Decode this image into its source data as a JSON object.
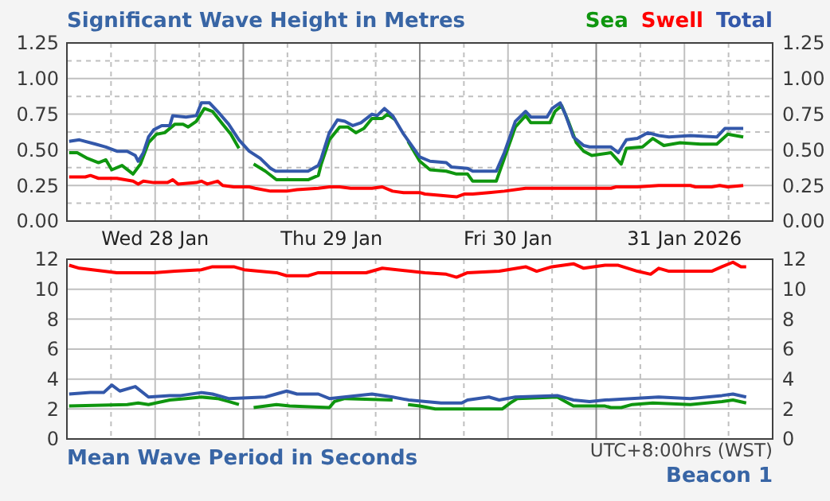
{
  "chart_data": [
    {
      "type": "line",
      "title": "Significant Wave Height in Metres",
      "legend": "top right",
      "grid": true,
      "xlim": [
        "2026-01-28T00:00",
        "2026-02-01T00:00"
      ],
      "xticks": [
        {
          "value": "2026-01-28T00:00",
          "label": null
        },
        {
          "value": "2026-01-28T06:00",
          "label": null
        },
        {
          "value": "2026-01-28T12:00",
          "label": "Wed 28 Jan"
        },
        {
          "value": "2026-01-28T18:00",
          "label": null
        },
        {
          "value": "2026-01-29T00:00",
          "label": null
        },
        {
          "value": "2026-01-29T06:00",
          "label": null
        },
        {
          "value": "2026-01-29T12:00",
          "label": "Thu 29 Jan"
        },
        {
          "value": "2026-01-29T18:00",
          "label": null
        },
        {
          "value": "2026-01-30T00:00",
          "label": null
        },
        {
          "value": "2026-01-30T06:00",
          "label": null
        },
        {
          "value": "2026-01-30T12:00",
          "label": "Fri 30 Jan"
        },
        {
          "value": "2026-01-30T18:00",
          "label": null
        },
        {
          "value": "2026-01-31T00:00",
          "label": null
        },
        {
          "value": "2026-01-31T06:00",
          "label": null
        },
        {
          "value": "2026-01-31T12:00",
          "label": "31 Jan 2026"
        },
        {
          "value": "2026-01-31T18:00",
          "label": null
        },
        {
          "value": "2026-02-01T00:00",
          "label": null
        }
      ],
      "ylim": [
        0,
        1.25
      ],
      "yticks": [
        {
          "value": 0,
          "label": "0.00"
        },
        {
          "value": 0.125,
          "label": null
        },
        {
          "value": 0.25,
          "label": "0.25"
        },
        {
          "value": 0.375,
          "label": null
        },
        {
          "value": 0.5,
          "label": "0.50"
        },
        {
          "value": 0.625,
          "label": null
        },
        {
          "value": 0.75,
          "label": "0.75"
        },
        {
          "value": 0.875,
          "label": null
        },
        {
          "value": 1,
          "label": "1.00"
        },
        {
          "value": 1.125,
          "label": null
        },
        {
          "value": 1.25,
          "label": "1.25"
        }
      ],
      "y2lim": [
        0,
        1.25
      ],
      "y2ticks": [
        {
          "value": 0,
          "label": "0.00"
        },
        {
          "value": 0.25,
          "label": "0.25"
        },
        {
          "value": 0.5,
          "label": "0.50"
        },
        {
          "value": 0.75,
          "label": "0.75"
        },
        {
          "value": 1,
          "label": "1.00"
        },
        {
          "value": 1.25,
          "label": "1.25"
        }
      ],
      "series": [
        {
          "name": "Sea",
          "color": "#0f960f",
          "x": [
            "2026-01-28T00:18",
            "2026-01-28T01:24",
            "2026-01-28T02:48",
            "2026-01-28T04:18",
            "2026-01-28T05:18",
            "2026-01-28T06:06",
            "2026-01-28T07:30",
            "2026-01-28T09:00",
            "2026-01-28T10:00",
            "2026-01-28T11:06",
            "2026-01-28T12:12",
            "2026-01-28T13:18",
            "2026-01-28T14:42",
            "2026-01-28T15:48",
            "2026-01-28T16:30",
            "2026-01-28T17:36",
            "2026-01-28T18:42",
            "2026-01-28T19:48",
            "2026-01-28T21:12",
            "2026-01-28T22:18",
            "2026-01-28T23:24",
            "2026-01-29T00:30",
            "2026-01-29T01:24",
            "2026-01-29T03:00",
            "2026-01-29T04:30",
            "2026-01-29T08:48",
            "2026-01-29T10:12",
            "2026-01-29T10:36",
            "2026-01-29T11:42",
            "2026-01-29T13:06",
            "2026-01-29T14:12",
            "2026-01-29T15:18",
            "2026-01-29T16:24",
            "2026-01-29T17:30",
            "2026-01-29T18:54",
            "2026-01-29T19:36",
            "2026-01-29T20:42",
            "2026-01-29T21:30",
            "2026-01-29T22:24",
            "2026-01-30T00:00",
            "2026-01-30T01:24",
            "2026-01-30T03:36",
            "2026-01-30T05:00",
            "2026-01-30T06:30",
            "2026-01-30T07:12",
            "2026-01-30T10:24",
            "2026-01-30T11:30",
            "2026-01-30T13:00",
            "2026-01-30T14:24",
            "2026-01-30T15:06",
            "2026-01-30T17:42",
            "2026-01-30T18:24",
            "2026-01-30T19:18",
            "2026-01-30T20:12",
            "2026-01-30T21:18",
            "2026-01-30T22:18",
            "2026-01-30T23:24",
            "2026-01-31T02:00",
            "2026-01-31T03:24",
            "2026-01-31T04:06",
            "2026-01-31T06:18",
            "2026-01-31T07:42",
            "2026-01-31T09:12",
            "2026-01-31T11:24",
            "2026-01-31T14:12",
            "2026-01-31T16:24",
            "2026-01-31T17:54",
            "2026-01-31T20:00"
          ],
          "values": [
            0.48,
            0.48,
            0.44,
            0.41,
            0.43,
            0.36,
            0.39,
            0.33,
            0.4,
            0.55,
            0.61,
            0.62,
            0.68,
            0.68,
            0.66,
            0.7,
            0.79,
            0.77,
            0.68,
            0.61,
            0.51,
            null,
            0.4,
            0.35,
            0.29,
            0.29,
            0.32,
            0.4,
            0.57,
            0.66,
            0.66,
            0.62,
            0.65,
            0.72,
            0.72,
            0.75,
            0.71,
            null,
            0.56,
            0.42,
            0.36,
            0.35,
            0.33,
            0.33,
            0.28,
            0.28,
            0.44,
            0.66,
            0.74,
            0.69,
            0.69,
            0.77,
            0.81,
            0.7,
            0.55,
            0.49,
            0.46,
            0.48,
            0.4,
            0.51,
            0.52,
            0.58,
            0.53,
            0.55,
            0.54,
            0.54,
            0.61,
            0.59
          ]
        },
        {
          "name": "Swell",
          "color": "#ff0000",
          "x": [
            "2026-01-28T00:18",
            "2026-01-28T02:30",
            "2026-01-28T03:12",
            "2026-01-28T04:18",
            "2026-01-28T06:48",
            "2026-01-28T09:00",
            "2026-01-28T09:42",
            "2026-01-28T10:24",
            "2026-01-28T11:48",
            "2026-01-28T13:42",
            "2026-01-28T14:24",
            "2026-01-28T15:06",
            "2026-01-28T17:36",
            "2026-01-28T18:18",
            "2026-01-28T19:06",
            "2026-01-28T20:30",
            "2026-01-28T21:12",
            "2026-01-28T22:42",
            "2026-01-29T00:48",
            "2026-01-29T01:36",
            "2026-01-29T03:42",
            "2026-01-29T05:54",
            "2026-01-29T07:18",
            "2026-01-29T10:12",
            "2026-01-29T11:42",
            "2026-01-29T13:06",
            "2026-01-29T14:36",
            "2026-01-29T17:30",
            "2026-01-29T18:54",
            "2026-01-29T20:18",
            "2026-01-29T21:48",
            "2026-01-30T00:00",
            "2026-01-30T00:42",
            "2026-01-30T02:54",
            "2026-01-30T05:00",
            "2026-01-30T06:06",
            "2026-01-30T07:12",
            "2026-01-30T09:24",
            "2026-01-30T11:30",
            "2026-01-30T14:24",
            "2026-01-30T15:06",
            "2026-01-30T18:00",
            "2026-01-30T19:30",
            "2026-01-31T02:00",
            "2026-01-31T02:42",
            "2026-01-31T05:36",
            "2026-01-31T08:30",
            "2026-01-31T12:48",
            "2026-01-31T13:30",
            "2026-01-31T15:42",
            "2026-01-31T16:48",
            "2026-01-31T17:54",
            "2026-01-31T20:00"
          ],
          "values": [
            0.31,
            0.31,
            0.32,
            0.3,
            0.3,
            0.28,
            0.26,
            0.28,
            0.27,
            0.27,
            0.29,
            0.26,
            0.27,
            0.28,
            0.26,
            0.28,
            0.25,
            0.24,
            0.24,
            0.23,
            0.21,
            0.21,
            0.22,
            0.23,
            0.24,
            0.24,
            0.23,
            0.23,
            0.24,
            0.21,
            0.2,
            0.2,
            0.19,
            0.18,
            0.17,
            0.19,
            0.19,
            0.2,
            0.21,
            0.23,
            0.23,
            0.23,
            0.23,
            0.23,
            0.24,
            0.24,
            0.25,
            0.25,
            0.24,
            0.24,
            0.25,
            0.24,
            0.25
          ]
        },
        {
          "name": "Total",
          "color": "#3358aa",
          "x": [
            "2026-01-28T00:18",
            "2026-01-28T01:42",
            "2026-01-28T03:54",
            "2026-01-28T05:18",
            "2026-01-28T06:48",
            "2026-01-28T08:12",
            "2026-01-28T09:18",
            "2026-01-28T09:42",
            "2026-01-28T10:24",
            "2026-01-28T11:06",
            "2026-01-28T11:48",
            "2026-01-28T12:54",
            "2026-01-28T14:00",
            "2026-01-28T14:24",
            "2026-01-28T16:12",
            "2026-01-28T17:36",
            "2026-01-28T18:18",
            "2026-01-28T19:24",
            "2026-01-28T20:30",
            "2026-01-28T22:00",
            "2026-01-28T23:24",
            "2026-01-29T00:48",
            "2026-01-29T02:18",
            "2026-01-29T03:42",
            "2026-01-29T04:24",
            "2026-01-29T08:48",
            "2026-01-29T10:12",
            "2026-01-29T10:36",
            "2026-01-29T11:42",
            "2026-01-29T12:48",
            "2026-01-29T13:48",
            "2026-01-29T14:54",
            "2026-01-29T16:00",
            "2026-01-29T17:30",
            "2026-01-29T18:12",
            "2026-01-29T19:12",
            "2026-01-29T20:18",
            "2026-01-29T21:48",
            "2026-01-30T00:00",
            "2026-01-30T01:24",
            "2026-01-30T03:36",
            "2026-01-30T04:18",
            "2026-01-30T06:30",
            "2026-01-30T07:12",
            "2026-01-30T10:24",
            "2026-01-30T11:30",
            "2026-01-30T13:00",
            "2026-01-30T14:24",
            "2026-01-30T15:06",
            "2026-01-30T17:18",
            "2026-01-30T18:00",
            "2026-01-30T19:06",
            "2026-01-30T19:48",
            "2026-01-30T20:54",
            "2026-01-30T22:18",
            "2026-01-30T23:06",
            "2026-01-31T02:00",
            "2026-01-31T03:00",
            "2026-01-31T04:06",
            "2026-01-31T05:36",
            "2026-01-31T07:00",
            "2026-01-31T08:30",
            "2026-01-31T09:54",
            "2026-01-31T12:48",
            "2026-01-31T16:24",
            "2026-01-31T17:30",
            "2026-01-31T20:00"
          ],
          "values": [
            0.56,
            0.57,
            0.54,
            0.52,
            0.49,
            0.49,
            0.46,
            0.42,
            0.48,
            0.59,
            0.64,
            0.67,
            0.67,
            0.74,
            0.73,
            0.74,
            0.83,
            0.83,
            0.77,
            0.68,
            0.57,
            0.49,
            0.44,
            0.37,
            0.35,
            0.35,
            0.39,
            0.44,
            0.62,
            0.71,
            0.7,
            0.67,
            0.69,
            0.75,
            0.74,
            0.79,
            0.74,
            0.61,
            0.45,
            0.42,
            0.41,
            0.38,
            0.37,
            0.35,
            0.35,
            0.48,
            0.7,
            0.77,
            0.73,
            0.73,
            0.79,
            0.83,
            0.75,
            0.59,
            0.53,
            0.52,
            0.52,
            0.48,
            0.57,
            0.58,
            0.62,
            0.6,
            0.59,
            0.6,
            0.59,
            0.65,
            0.65
          ]
        }
      ]
    },
    {
      "type": "line",
      "title": "Mean Wave Period in Seconds",
      "grid": true,
      "tick_labels": "y",
      "annotations": [
        "UTC+8:00hrs (WST)",
        "Beacon 1"
      ],
      "xlim": [
        "2026-01-28T00:00",
        "2026-02-01T00:00"
      ],
      "xticks": [
        {
          "value": "2026-01-28T00:00",
          "label": null
        },
        {
          "value": "2026-01-28T06:00",
          "label": null
        },
        {
          "value": "2026-01-28T12:00",
          "label": null
        },
        {
          "value": "2026-01-28T18:00",
          "label": null
        },
        {
          "value": "2026-01-29T00:00",
          "label": null
        },
        {
          "value": "2026-01-29T06:00",
          "label": null
        },
        {
          "value": "2026-01-29T12:00",
          "label": null
        },
        {
          "value": "2026-01-29T18:00",
          "label": null
        },
        {
          "value": "2026-01-30T00:00",
          "label": null
        },
        {
          "value": "2026-01-30T06:00",
          "label": null
        },
        {
          "value": "2026-01-30T12:00",
          "label": null
        },
        {
          "value": "2026-01-30T18:00",
          "label": null
        },
        {
          "value": "2026-01-31T00:00",
          "label": null
        },
        {
          "value": "2026-01-31T06:00",
          "label": null
        },
        {
          "value": "2026-01-31T12:00",
          "label": null
        },
        {
          "value": "2026-01-31T18:00",
          "label": null
        },
        {
          "value": "2026-02-01T00:00",
          "label": null
        }
      ],
      "ylim": [
        0,
        12
      ],
      "yticks": [
        0,
        2,
        4,
        6,
        8,
        10,
        12
      ],
      "y2lim": [
        0,
        12
      ],
      "y2ticks": [
        0,
        2,
        4,
        6,
        8,
        10,
        12
      ],
      "series": [
        {
          "color": "#0f960f",
          "x": [
            "2026-01-28T00:18",
            "2026-01-28T08:12",
            "2026-01-28T09:42",
            "2026-01-28T11:06",
            "2026-01-28T14:00",
            "2026-01-28T16:12",
            "2026-01-28T18:18",
            "2026-01-28T20:30",
            "2026-01-28T22:00",
            "2026-01-28T23:24",
            "2026-01-29T00:30",
            "2026-01-29T01:24",
            "2026-01-29T04:30",
            "2026-01-29T06:18",
            "2026-01-29T11:42",
            "2026-01-29T12:24",
            "2026-01-29T13:48",
            "2026-01-29T20:18",
            "2026-01-29T21:30",
            "2026-01-29T22:24",
            "2026-01-30T00:00",
            "2026-01-30T02:06",
            "2026-01-30T11:12",
            "2026-01-30T12:18",
            "2026-01-30T13:18",
            "2026-01-30T18:42",
            "2026-01-30T20:54",
            "2026-01-31T01:12",
            "2026-01-31T02:00",
            "2026-01-31T03:24",
            "2026-01-31T04:54",
            "2026-01-31T07:42",
            "2026-01-31T12:48",
            "2026-01-31T17:06",
            "2026-01-31T18:36",
            "2026-01-31T20:24"
          ],
          "values": [
            2.2,
            2.3,
            2.4,
            2.3,
            2.6,
            2.7,
            2.8,
            2.7,
            2.5,
            2.3,
            null,
            2.1,
            2.3,
            2.2,
            2.1,
            2.5,
            2.7,
            2.6,
            null,
            2.3,
            2.2,
            2.0,
            2.0,
            2.4,
            2.7,
            2.8,
            2.2,
            2.2,
            2.1,
            2.1,
            2.3,
            2.4,
            2.3,
            2.5,
            2.6,
            2.4
          ]
        },
        {
          "color": "#ff0000",
          "x": [
            "2026-01-28T00:18",
            "2026-01-28T01:42",
            "2026-01-28T06:48",
            "2026-01-28T11:48",
            "2026-01-28T14:42",
            "2026-01-28T18:18",
            "2026-01-28T19:48",
            "2026-01-28T22:42",
            "2026-01-29T00:06",
            "2026-01-29T04:30",
            "2026-01-29T05:54",
            "2026-01-29T08:48",
            "2026-01-29T10:12",
            "2026-01-29T14:36",
            "2026-01-29T16:42",
            "2026-01-29T18:54",
            "2026-01-30T00:42",
            "2026-01-30T03:36",
            "2026-01-30T05:00",
            "2026-01-30T06:30",
            "2026-01-30T10:48",
            "2026-01-30T14:24",
            "2026-01-30T15:54",
            "2026-01-30T18:00",
            "2026-01-30T20:54",
            "2026-01-30T22:18",
            "2026-01-31T01:12",
            "2026-01-31T03:00",
            "2026-01-31T05:36",
            "2026-01-31T07:24",
            "2026-01-31T08:30",
            "2026-01-31T09:54",
            "2026-01-31T15:42",
            "2026-01-31T17:06",
            "2026-01-31T18:36",
            "2026-01-31T19:42",
            "2026-01-31T20:24"
          ],
          "values": [
            11.6,
            11.4,
            11.1,
            11.1,
            11.2,
            11.3,
            11.5,
            11.5,
            11.3,
            11.1,
            10.9,
            10.9,
            11.1,
            11.1,
            11.1,
            11.4,
            11.1,
            11.0,
            10.8,
            11.1,
            11.2,
            11.5,
            11.2,
            11.5,
            11.7,
            11.4,
            11.6,
            11.6,
            11.2,
            11.0,
            11.4,
            11.2,
            11.2,
            11.5,
            11.8,
            11.5,
            11.5
          ]
        },
        {
          "color": "#3358aa",
          "x": [
            "2026-01-28T00:18",
            "2026-01-28T03:12",
            "2026-01-28T05:00",
            "2026-01-28T06:06",
            "2026-01-28T07:12",
            "2026-01-28T09:18",
            "2026-01-28T11:06",
            "2026-01-28T14:00",
            "2026-01-28T15:30",
            "2026-01-28T18:18",
            "2026-01-28T19:48",
            "2026-01-28T22:00",
            "2026-01-29T03:00",
            "2026-01-29T05:54",
            "2026-01-29T07:18",
            "2026-01-29T10:12",
            "2026-01-29T11:42",
            "2026-01-29T17:30",
            "2026-01-29T20:18",
            "2026-01-29T22:30",
            "2026-01-30T02:54",
            "2026-01-30T05:42",
            "2026-01-30T06:30",
            "2026-01-30T09:24",
            "2026-01-30T10:48",
            "2026-01-30T13:00",
            "2026-01-30T18:42",
            "2026-01-30T20:54",
            "2026-01-30T23:06",
            "2026-01-31T01:12",
            "2026-01-31T08:30",
            "2026-01-31T12:48",
            "2026-01-31T17:06",
            "2026-01-31T18:36",
            "2026-01-31T20:24"
          ],
          "values": [
            3.0,
            3.1,
            3.1,
            3.6,
            3.2,
            3.5,
            2.8,
            2.9,
            2.9,
            3.1,
            3.0,
            2.7,
            2.8,
            3.2,
            3.0,
            3.0,
            2.7,
            3.0,
            2.8,
            2.6,
            2.4,
            2.4,
            2.6,
            2.8,
            2.6,
            2.8,
            2.9,
            2.6,
            2.5,
            2.6,
            2.8,
            2.7,
            2.9,
            3.0,
            2.8
          ]
        }
      ]
    }
  ]
}
